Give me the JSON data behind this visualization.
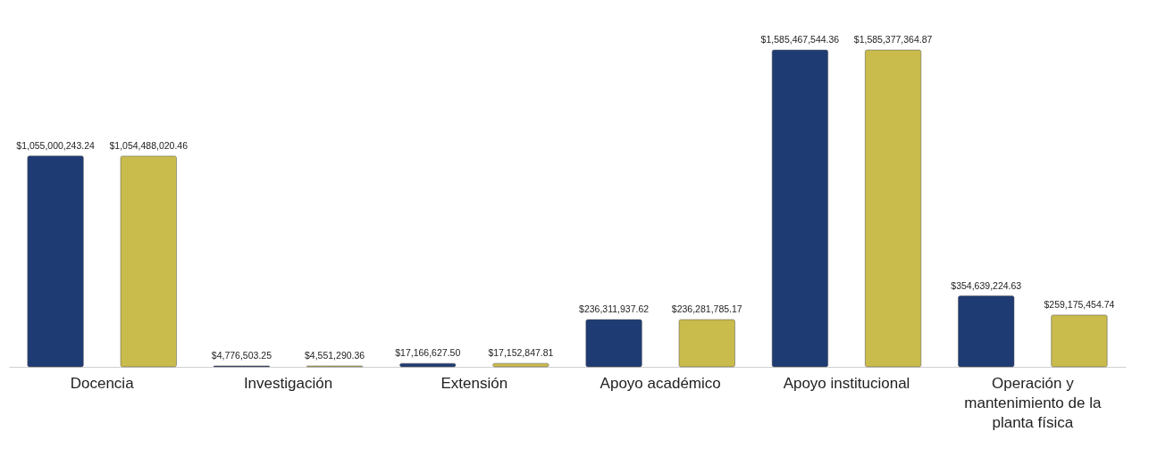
{
  "chart_data": {
    "type": "bar",
    "categories": [
      "Docencia",
      "Investigación",
      "Extensión",
      "Apoyo académico",
      "Apoyo institucional",
      "Operación y mantenimiento de la planta física"
    ],
    "series": [
      {
        "color": "#1f3b73",
        "values": [
          1055000243.24,
          4776503.25,
          17166627.5,
          236311937.62,
          1585467544.36,
          354639224.63
        ],
        "value_labels": [
          "$1,055,000,243.24",
          "$4,776,503.25",
          "$17,166,627.50",
          "$236,311,937.62",
          "$1,585,467,544.36",
          "$354,639,224.63"
        ]
      },
      {
        "color": "#c9bb4c",
        "values": [
          1054488020.46,
          4551290.36,
          17152847.81,
          236281785.17,
          1585377364.87,
          259175454.74
        ],
        "value_labels": [
          "$1,054,488,020.46",
          "$4,551,290.36",
          "$17,152,847.81",
          "$236,281,785.17",
          "$1,585,377,364.87",
          "$259,175,454.74"
        ]
      }
    ],
    "legend": false
  }
}
